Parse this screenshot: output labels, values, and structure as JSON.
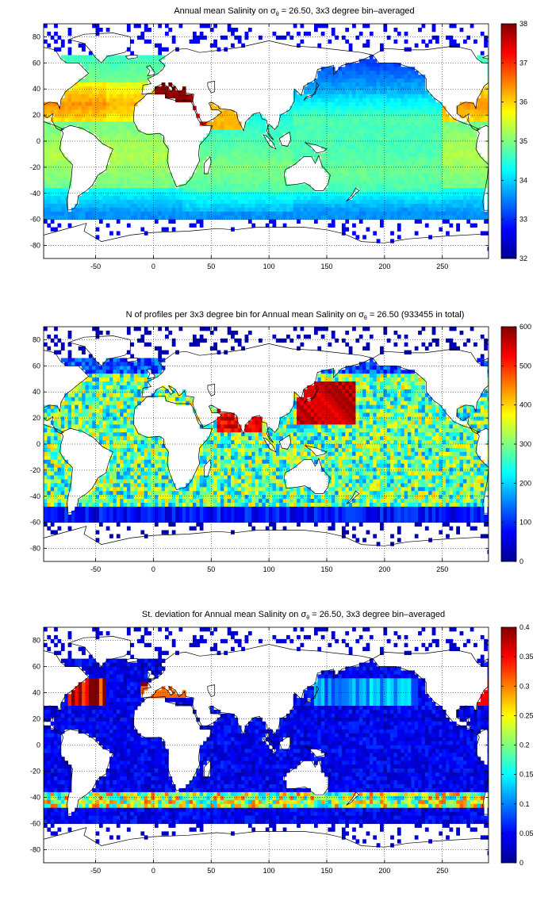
{
  "chart_data": [
    {
      "type": "heatmap",
      "title_main": "Annual mean Salinity on ",
      "title_sigma": "σ",
      "title_sub": "θ",
      "title_rest": " = 26.50, 3x3 degree bin–averaged",
      "x_ticks": [
        "-50",
        "0",
        "50",
        "100",
        "150",
        "200",
        "250"
      ],
      "y_ticks": [
        "80",
        "60",
        "40",
        "20",
        "0",
        "-20",
        "-40",
        "-60",
        "-80"
      ],
      "xlim": [
        -95,
        290
      ],
      "ylim": [
        -90,
        90
      ],
      "grid": true,
      "colorbar": {
        "min": 32,
        "max": 38,
        "ticks": [
          "38",
          "37",
          "36",
          "35",
          "34",
          "33",
          "32"
        ]
      }
    },
    {
      "type": "heatmap",
      "title_main": "N of profiles per 3x3 degree bin for Annual mean Salinity on ",
      "title_sigma": "σ",
      "title_sub": "θ",
      "title_rest": " = 26.50 (933455 in total)",
      "x_ticks": [
        "-50",
        "0",
        "50",
        "100",
        "150",
        "200",
        "250"
      ],
      "y_ticks": [
        "80",
        "60",
        "40",
        "20",
        "0",
        "-20",
        "-40",
        "-60",
        "-80"
      ],
      "xlim": [
        -95,
        290
      ],
      "ylim": [
        -90,
        90
      ],
      "grid": true,
      "colorbar": {
        "min": 0,
        "max": 600,
        "ticks": [
          "600",
          "500",
          "400",
          "300",
          "200",
          "100",
          "0"
        ]
      }
    },
    {
      "type": "heatmap",
      "title_main": "St. deviation for Annual mean Salinity on ",
      "title_sigma": "σ",
      "title_sub": "θ",
      "title_rest": " = 26.50, 3x3 degree bin–averaged",
      "x_ticks": [
        "-50",
        "0",
        "50",
        "100",
        "150",
        "200",
        "250"
      ],
      "y_ticks": [
        "80",
        "60",
        "40",
        "20",
        "0",
        "-20",
        "-40",
        "-60",
        "-80"
      ],
      "xlim": [
        -95,
        290
      ],
      "ylim": [
        -90,
        90
      ],
      "grid": true,
      "colorbar": {
        "min": 0,
        "max": 0.4,
        "ticks": [
          "0.4",
          "0.35",
          "0.3",
          "0.25",
          "0.2",
          "0.15",
          "0.1",
          "0.05",
          "0"
        ]
      }
    }
  ]
}
